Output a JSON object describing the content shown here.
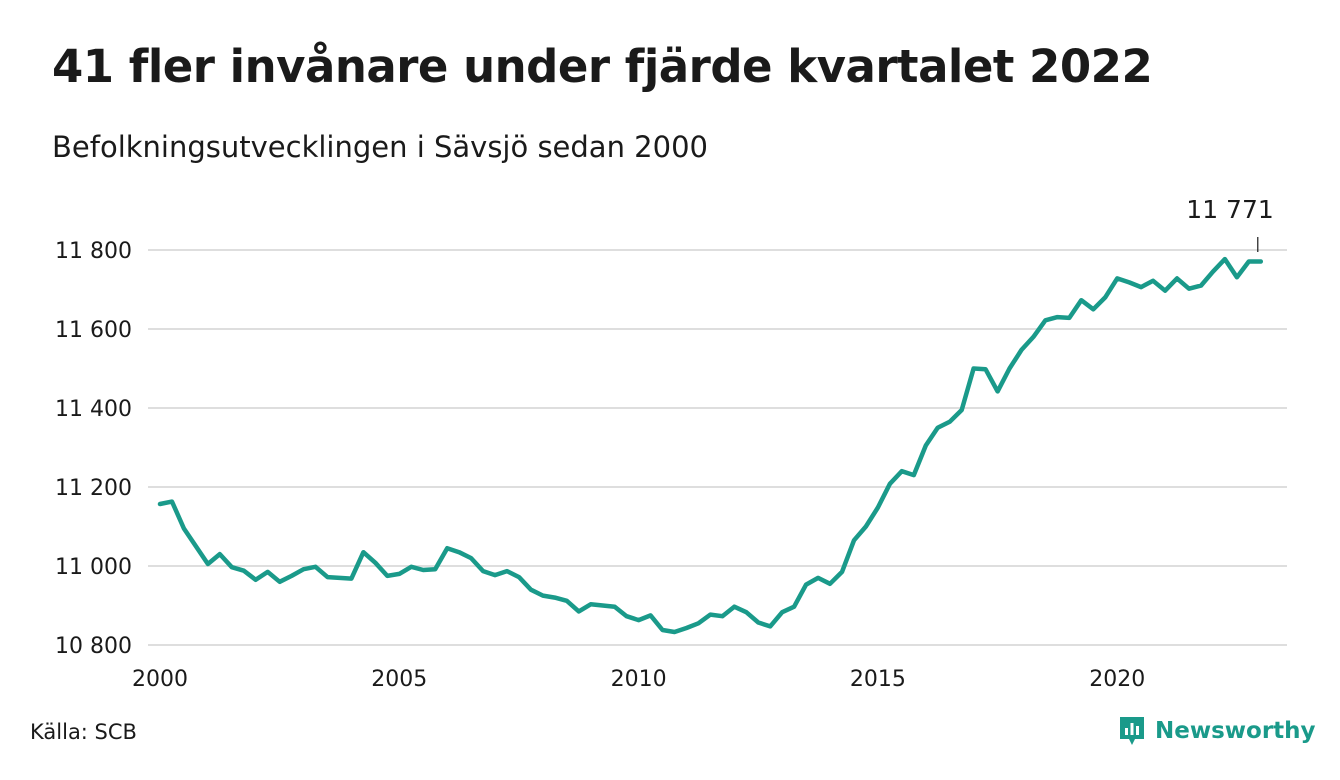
{
  "header": {
    "title": "41 fler invånare under fjärde kvartalet 2022",
    "subtitle": "Befolkningsutvecklingen i Sävsjö sedan 2000"
  },
  "footer": {
    "source": "Källa: SCB",
    "brand": "Newsworthy",
    "brand_icon": "newsworthy-logo-icon",
    "brand_color": "#1a9a8a"
  },
  "chart_data": {
    "type": "line",
    "title": "41 fler invånare under fjärde kvartalet 2022",
    "subtitle": "Befolkningsutvecklingen i Sävsjö sedan 2000",
    "xlim": [
      2000,
      2023.3
    ],
    "ylim": [
      10800,
      11800
    ],
    "x_ticks": [
      2000,
      2005,
      2010,
      2015,
      2020
    ],
    "x_tick_labels": [
      "2000",
      "2005",
      "2010",
      "2015",
      "2020"
    ],
    "y_ticks": [
      10800,
      11000,
      11200,
      11400,
      11600,
      11800
    ],
    "y_tick_labels": [
      "10 800",
      "11 000",
      "11 200",
      "11 400",
      "11 600",
      "11 800"
    ],
    "grid": "horizontal",
    "line_color": "#1a9a8a",
    "end_label": "11 771",
    "series": [
      {
        "x": [
          2000.0,
          2000.25,
          2000.5,
          2000.75,
          2001.0,
          2001.25,
          2001.5,
          2001.75,
          2002.0,
          2002.25,
          2002.5,
          2002.75,
          2003.0,
          2003.25,
          2003.5,
          2003.75,
          2004.0,
          2004.25,
          2004.5,
          2004.75,
          2005.0,
          2005.25,
          2005.5,
          2005.75,
          2006.0,
          2006.25,
          2006.5,
          2006.75,
          2007.0,
          2007.25,
          2007.5,
          2007.75,
          2008.0,
          2008.25,
          2008.5,
          2008.75,
          2009.0,
          2009.25,
          2009.5,
          2009.75,
          2010.0,
          2010.25,
          2010.5,
          2010.75,
          2011.0,
          2011.25,
          2011.5,
          2011.75,
          2012.0,
          2012.25,
          2012.5,
          2012.75,
          2013.0,
          2013.25,
          2013.5,
          2013.75,
          2014.0,
          2014.25,
          2014.5,
          2014.75,
          2015.0,
          2015.25,
          2015.5,
          2015.75,
          2016.0,
          2016.25,
          2016.5,
          2016.75,
          2017.0,
          2017.25,
          2017.5,
          2017.75,
          2018.0,
          2018.25,
          2018.5,
          2018.75,
          2019.0,
          2019.25,
          2019.5,
          2019.75,
          2020.0,
          2020.25,
          2020.5,
          2020.75,
          2021.0,
          2021.25,
          2021.5,
          2021.75,
          2022.0,
          2022.25,
          2022.5,
          2022.75,
          2023.0
        ],
        "y": [
          11157,
          11163,
          11095,
          11050,
          11005,
          11030,
          10997,
          10988,
          10965,
          10985,
          10960,
          10975,
          10992,
          10998,
          10972,
          10970,
          10968,
          11035,
          11008,
          10975,
          10980,
          10998,
          10990,
          10992,
          11045,
          11035,
          11020,
          10987,
          10977,
          10987,
          10972,
          10940,
          10925,
          10920,
          10912,
          10885,
          10903,
          10900,
          10897,
          10873,
          10863,
          10875,
          10838,
          10833,
          10843,
          10855,
          10877,
          10873,
          10897,
          10883,
          10857,
          10847,
          10883,
          10897,
          10953,
          10970,
          10955,
          10985,
          11065,
          11100,
          11148,
          11208,
          11240,
          11230,
          11305,
          11350,
          11365,
          11395,
          11500,
          11498,
          11442,
          11500,
          11547,
          11580,
          11622,
          11630,
          11628,
          11673,
          11650,
          11680,
          11728,
          11718,
          11706,
          11722,
          11697,
          11728,
          11702,
          11710,
          11745,
          11777,
          11731,
          11771,
          11771
        ]
      }
    ]
  }
}
